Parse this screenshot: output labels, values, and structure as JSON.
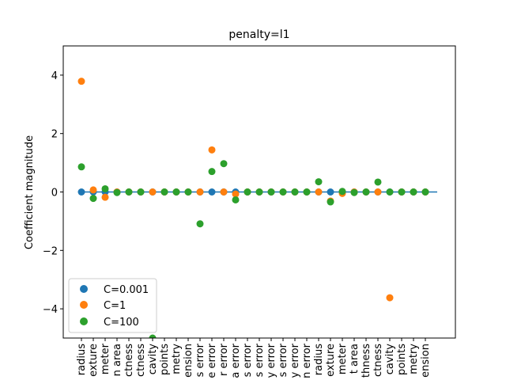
{
  "chart_data": {
    "type": "scatter",
    "title": "penalty=l1",
    "xlabel": "",
    "ylabel": "Coefficient magnitude",
    "ylim": [
      -5,
      5
    ],
    "yticks": [
      -4,
      -2,
      0,
      2,
      4
    ],
    "ytick_labels": [
      "−4",
      "−2",
      "0",
      "2",
      "4"
    ],
    "categories": [
      "mean radius",
      "mean texture",
      "mean perimeter",
      "mean area",
      "mean smoothness",
      "mean compactness",
      "mean concavity",
      "mean concave points",
      "mean symmetry",
      "mean fractal dimension",
      "radius error",
      "texture error",
      "perimeter error",
      "area error",
      "smoothness error",
      "compactness error",
      "concavity error",
      "concave points error",
      "symmetry error",
      "fractal dimension error",
      "worst radius",
      "worst texture",
      "worst perimeter",
      "worst area",
      "worst smoothness",
      "worst compactness",
      "worst concavity",
      "worst concave points",
      "worst symmetry",
      "worst fractal dimension"
    ],
    "tick_label_visible": [
      "radius",
      "exture",
      "meter",
      "n area",
      "ctness",
      "ctness",
      "cavity",
      "points",
      "metry",
      "ension",
      "s error",
      "e error",
      "r error",
      "a error",
      "s error",
      "s error",
      "y error",
      "s error",
      "y error",
      "n error",
      "radius",
      "exture",
      "meter",
      "t area",
      "thness",
      "ctness",
      "cavity",
      "points",
      "metry",
      "ension"
    ],
    "hline": 0,
    "series": [
      {
        "name": "C=0.001",
        "color": "#1f77b4",
        "values": [
          0,
          0,
          0,
          0,
          0,
          0,
          0,
          0,
          0,
          0,
          0,
          0,
          0,
          0,
          0,
          0,
          0,
          0,
          0,
          0,
          0,
          0,
          0,
          0,
          0,
          0,
          0,
          0,
          0,
          0
        ]
      },
      {
        "name": "C=1",
        "color": "#ff7f0e",
        "values": [
          3.79,
          0.07,
          -0.18,
          0,
          0,
          0,
          0,
          0,
          0,
          0,
          0,
          1.44,
          0,
          -0.07,
          0,
          0,
          0,
          0,
          0,
          0,
          0,
          -0.31,
          -0.05,
          0,
          0,
          0,
          -3.62,
          0,
          0,
          0
        ]
      },
      {
        "name": "C=100",
        "color": "#2ca02c",
        "values": [
          0.86,
          -0.22,
          0.11,
          -0.02,
          0,
          0,
          -5.0,
          0,
          0,
          0,
          -1.09,
          0.7,
          0.97,
          -0.27,
          0,
          0,
          0,
          0,
          0,
          0,
          0.35,
          -0.34,
          0.02,
          -0.02,
          0,
          0.34,
          0,
          0,
          0,
          0
        ]
      }
    ],
    "legend_location": "lower-left",
    "grid": false
  }
}
